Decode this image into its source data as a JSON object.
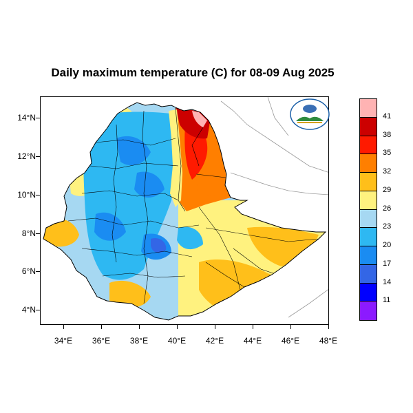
{
  "title": "Daily maximum temperature (C) for 08-09 Aug 2025",
  "lat_ticks": [
    "14°N",
    "12°N",
    "10°N",
    "8°N",
    "6°N",
    "4°N"
  ],
  "lon_ticks": [
    "34°E",
    "36°E",
    "38°E",
    "40°E",
    "42°E",
    "44°E",
    "46°E",
    "48°E"
  ],
  "colorbar": {
    "labels": [
      "41",
      "38",
      "35",
      "32",
      "29",
      "26",
      "23",
      "20",
      "17",
      "14",
      "11"
    ],
    "colors": [
      "#ffb3b3",
      "#cc0000",
      "#ff1a00",
      "#ff7f00",
      "#ffbf1a",
      "#fff27f",
      "#a6d8f2",
      "#2eb8f2",
      "#1a8cf2",
      "#3366e6",
      "#0000ff",
      "#8c1aff"
    ]
  },
  "logo": {
    "icon": "ethiopian-meteorology-institute-logo"
  }
}
